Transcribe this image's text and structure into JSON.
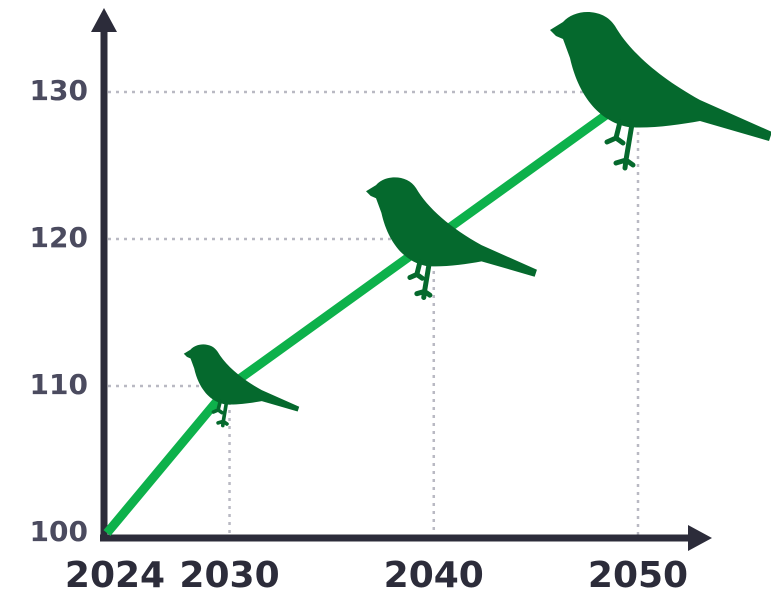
{
  "chart_data": {
    "type": "line",
    "x": [
      2024,
      2030,
      2040,
      2050
    ],
    "values": [
      100,
      110,
      120,
      130
    ],
    "color": "#0db14b",
    "marker_color": "#05692d",
    "xlim": [
      2024,
      2050
    ],
    "xticks": [
      2024,
      2030,
      2040,
      2050
    ],
    "ylim": [
      100,
      130
    ],
    "yticks": [
      100,
      110,
      120,
      130
    ]
  }
}
